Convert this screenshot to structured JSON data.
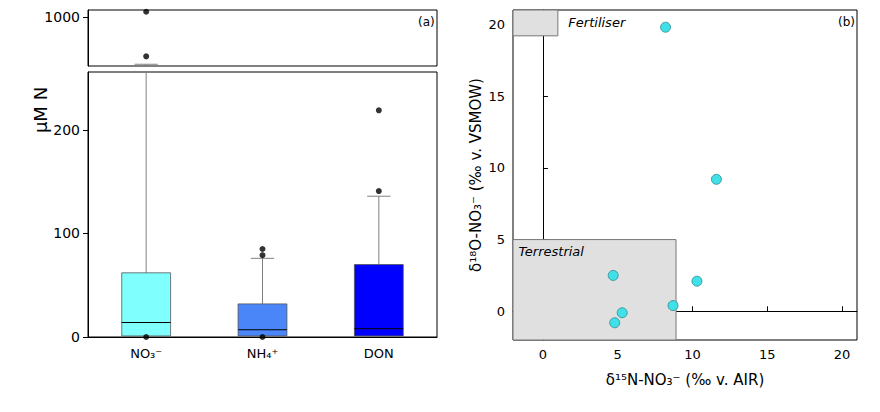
{
  "chart_data": [
    {
      "type": "boxplot",
      "panel_label": "(a)",
      "y_label": "µM N",
      "categories": [
        "NO₃⁻",
        "NH₄⁺",
        "DON"
      ],
      "boxes": [
        [
          0.5,
          1,
          14,
          62,
          460
        ],
        [
          0.5,
          1,
          7,
          32,
          76
        ],
        [
          0,
          1,
          8,
          70,
          136
        ]
      ],
      "outliers": [
        [
          0,
          550,
          1060
        ],
        [
          0,
          79,
          85
        ],
        [
          141,
          219
        ]
      ],
      "colors": [
        "#80ffff",
        "#4a86f7",
        "#0000ff"
      ],
      "ylim": [
        0,
        1080
      ],
      "ybreak": [
        256,
        440
      ],
      "yticks": [
        0,
        100,
        200,
        1000
      ]
    },
    {
      "type": "scatter",
      "panel_label": "(b)",
      "x_label": "δ¹⁵N-NO₃⁻ (‰ v. AIR)",
      "y_label": "δ¹⁸O-NO₃⁻ (‰ v. VSMOW)",
      "x": [
        8.2,
        11.6,
        4.7,
        10.3,
        8.7,
        5.3,
        4.8
      ],
      "values": [
        19.8,
        9.2,
        2.5,
        2.1,
        0.4,
        -0.1,
        -0.8
      ],
      "color": "#40e0e8",
      "xlim": [
        -2,
        21
      ],
      "ylim": [
        -2,
        21
      ],
      "xticks": [
        0,
        5,
        10,
        15,
        20
      ],
      "yticks": [
        0,
        5,
        10,
        15,
        20
      ],
      "regions": [
        {
          "label": "Fertiliser",
          "x": [
            -2,
            1
          ],
          "y": [
            19.2,
            21
          ]
        },
        {
          "label": "Terrestrial",
          "x": [
            -2,
            8.9
          ],
          "y": [
            -2,
            5
          ]
        }
      ]
    }
  ]
}
